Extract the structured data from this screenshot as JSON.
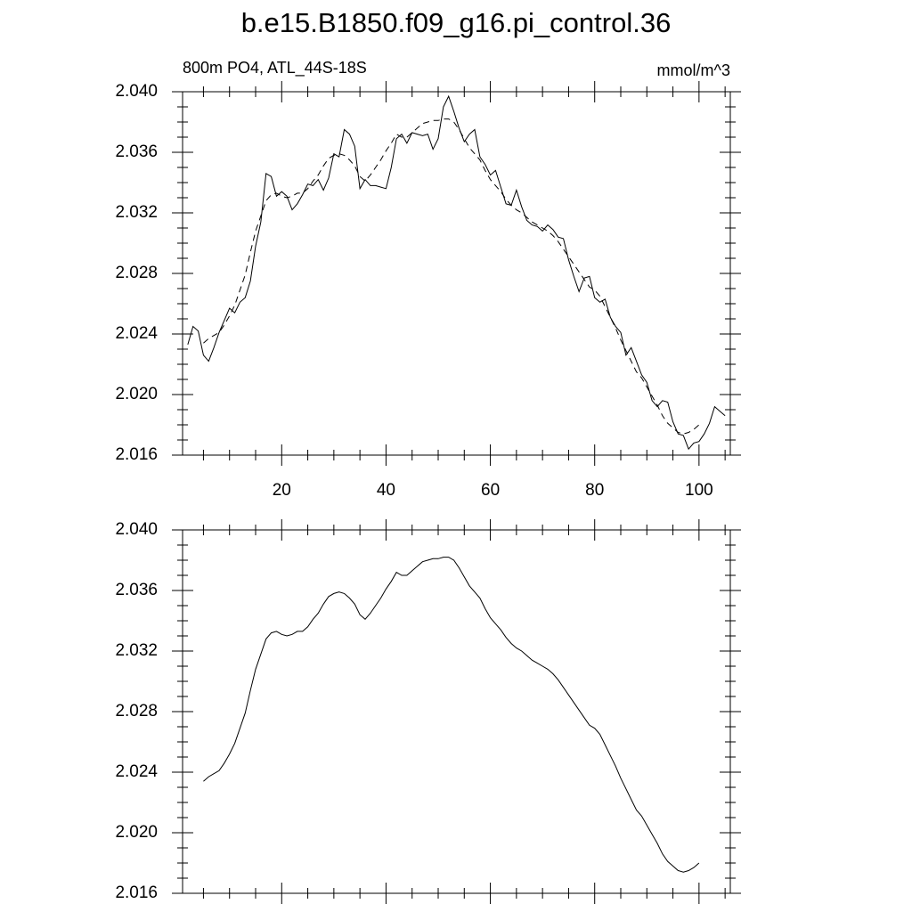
{
  "chart_data": [
    {
      "type": "line",
      "title": "b.e15.B1850.f09_g16.pi_control.36",
      "subtitle": "800m PO4, ATL_44S-18S",
      "units": "mmol/m^3",
      "xlim": [
        1,
        106
      ],
      "ylim": [
        2.016,
        2.04
      ],
      "xticks": [
        20,
        40,
        60,
        80,
        100
      ],
      "xtick_labels": true,
      "yticks": [
        {
          "value": 2.016,
          "label": "2.016"
        },
        {
          "value": 2.02,
          "label": "2.020"
        },
        {
          "value": 2.024,
          "label": "2.024"
        },
        {
          "value": 2.028,
          "label": "2.028"
        },
        {
          "value": 2.032,
          "label": "2.032"
        },
        {
          "value": 2.036,
          "label": "2.036"
        },
        {
          "value": 2.04,
          "label": "2.040"
        }
      ],
      "series": [
        {
          "color": "#000000",
          "dash": false,
          "x": [
            2,
            3,
            4,
            5,
            6,
            7,
            8,
            9,
            10,
            11,
            12,
            13,
            14,
            15,
            16,
            17,
            18,
            19,
            20,
            21,
            22,
            23,
            24,
            25,
            26,
            27,
            28,
            29,
            30,
            31,
            32,
            33,
            34,
            35,
            36,
            37,
            38,
            39,
            40,
            41,
            42,
            43,
            44,
            45,
            46,
            47,
            48,
            49,
            50,
            51,
            52,
            53,
            54,
            55,
            56,
            57,
            58,
            59,
            60,
            61,
            62,
            63,
            64,
            65,
            66,
            67,
            68,
            69,
            70,
            71,
            72,
            73,
            74,
            75,
            76,
            77,
            78,
            79,
            80,
            81,
            82,
            83,
            84,
            85,
            86,
            87,
            88,
            89,
            90,
            91,
            92,
            93,
            94,
            95,
            96,
            97,
            98,
            99,
            100,
            101,
            102,
            103,
            104,
            105
          ],
          "values": [
            2.0233,
            2.0245,
            2.0242,
            2.0226,
            2.0222,
            2.0231,
            2.0241,
            2.0249,
            2.0257,
            2.0254,
            2.0261,
            2.0264,
            2.0275,
            2.0298,
            2.0314,
            2.0346,
            2.0344,
            2.0331,
            2.0334,
            2.0331,
            2.0322,
            2.0326,
            2.0332,
            2.0339,
            2.0338,
            2.0342,
            2.0335,
            2.0343,
            2.0359,
            2.0357,
            2.0375,
            2.0372,
            2.0364,
            2.0336,
            2.0342,
            2.0338,
            2.0338,
            2.0337,
            2.0336,
            2.035,
            2.0369,
            2.0372,
            2.0366,
            2.0373,
            2.0372,
            2.0371,
            2.0372,
            2.0362,
            2.0369,
            2.039,
            2.0397,
            2.0387,
            2.0376,
            2.0367,
            2.0372,
            2.0375,
            2.0357,
            2.0352,
            2.0345,
            2.0348,
            2.0337,
            2.0326,
            2.0325,
            2.0335,
            2.0324,
            2.0315,
            2.0312,
            2.0311,
            2.0308,
            2.0312,
            2.0309,
            2.0304,
            2.0303,
            2.0289,
            2.0278,
            2.0268,
            2.0277,
            2.0278,
            2.0264,
            2.0261,
            2.0263,
            2.0251,
            2.0245,
            2.0241,
            2.0226,
            2.0231,
            2.0222,
            2.0213,
            2.0208,
            2.0196,
            2.0192,
            2.0196,
            2.0195,
            2.0182,
            2.0174,
            2.0173,
            2.0164,
            2.0168,
            2.0169,
            2.0174,
            2.0181,
            2.0192,
            2.0189,
            2.0186
          ]
        },
        {
          "color": "#000000",
          "dash": true,
          "x": [
            5,
            6,
            7,
            8,
            9,
            10,
            11,
            12,
            13,
            14,
            15,
            16,
            17,
            18,
            19,
            20,
            21,
            22,
            23,
            24,
            25,
            26,
            27,
            28,
            29,
            30,
            31,
            32,
            33,
            34,
            35,
            36,
            37,
            38,
            39,
            40,
            41,
            42,
            43,
            44,
            45,
            46,
            47,
            48,
            49,
            50,
            51,
            52,
            53,
            54,
            55,
            56,
            57,
            58,
            59,
            60,
            61,
            62,
            63,
            64,
            65,
            66,
            67,
            68,
            69,
            70,
            71,
            72,
            73,
            74,
            75,
            76,
            77,
            78,
            79,
            80,
            81,
            82,
            83,
            84,
            85,
            86,
            87,
            88,
            89,
            90,
            91,
            92,
            93,
            94,
            95,
            96,
            97,
            98,
            99,
            100
          ],
          "values": [
            2.0234,
            2.0237,
            2.0239,
            2.0241,
            2.0246,
            2.0252,
            2.0259,
            2.0269,
            2.0279,
            2.0294,
            2.0308,
            2.0318,
            2.0328,
            2.0332,
            2.0333,
            2.0331,
            2.033,
            2.0331,
            2.0333,
            2.0333,
            2.0336,
            2.0341,
            2.0345,
            2.0351,
            2.0356,
            2.0358,
            2.0359,
            2.0358,
            2.0355,
            2.0351,
            2.0344,
            2.0341,
            2.0345,
            2.035,
            2.0355,
            2.0361,
            2.0366,
            2.0372,
            2.037,
            2.037,
            2.0373,
            2.0376,
            2.0379,
            2.038,
            2.0381,
            2.0381,
            2.0382,
            2.0382,
            2.038,
            2.0375,
            2.0369,
            2.0363,
            2.0359,
            2.0355,
            2.0348,
            2.0342,
            2.0338,
            2.0334,
            2.0329,
            2.0325,
            2.0322,
            2.032,
            2.0317,
            2.0314,
            2.0312,
            2.031,
            2.0308,
            2.0305,
            2.0301,
            2.0296,
            2.0291,
            2.0286,
            2.0281,
            2.0276,
            2.0271,
            2.0269,
            2.0265,
            2.0258,
            2.0251,
            2.0244,
            2.0236,
            2.0229,
            2.0222,
            2.0215,
            2.0211,
            2.0205,
            2.0199,
            2.0193,
            2.0186,
            2.0181,
            2.0178,
            2.0175,
            2.0174,
            2.0175,
            2.0177,
            2.018
          ]
        }
      ]
    },
    {
      "type": "line",
      "xlim": [
        1,
        106
      ],
      "ylim": [
        2.016,
        2.04
      ],
      "xticks": [
        20,
        40,
        60,
        80,
        100
      ],
      "xtick_labels": false,
      "yticks": [
        {
          "value": 2.016,
          "label": "2.016"
        },
        {
          "value": 2.02,
          "label": "2.020"
        },
        {
          "value": 2.024,
          "label": "2.024"
        },
        {
          "value": 2.028,
          "label": "2.028"
        },
        {
          "value": 2.032,
          "label": "2.032"
        },
        {
          "value": 2.036,
          "label": "2.036"
        },
        {
          "value": 2.04,
          "label": "2.040"
        }
      ],
      "series": [
        {
          "color": "#000000",
          "dash": false,
          "x": [
            5,
            6,
            7,
            8,
            9,
            10,
            11,
            12,
            13,
            14,
            15,
            16,
            17,
            18,
            19,
            20,
            21,
            22,
            23,
            24,
            25,
            26,
            27,
            28,
            29,
            30,
            31,
            32,
            33,
            34,
            35,
            36,
            37,
            38,
            39,
            40,
            41,
            42,
            43,
            44,
            45,
            46,
            47,
            48,
            49,
            50,
            51,
            52,
            53,
            54,
            55,
            56,
            57,
            58,
            59,
            60,
            61,
            62,
            63,
            64,
            65,
            66,
            67,
            68,
            69,
            70,
            71,
            72,
            73,
            74,
            75,
            76,
            77,
            78,
            79,
            80,
            81,
            82,
            83,
            84,
            85,
            86,
            87,
            88,
            89,
            90,
            91,
            92,
            93,
            94,
            95,
            96,
            97,
            98,
            99,
            100
          ],
          "values": [
            2.0234,
            2.0237,
            2.0239,
            2.0241,
            2.0246,
            2.0252,
            2.0259,
            2.0269,
            2.0279,
            2.0294,
            2.0308,
            2.0318,
            2.0328,
            2.0332,
            2.0333,
            2.0331,
            2.033,
            2.0331,
            2.0333,
            2.0333,
            2.0336,
            2.0341,
            2.0345,
            2.0351,
            2.0356,
            2.0358,
            2.0359,
            2.0358,
            2.0355,
            2.0351,
            2.0344,
            2.0341,
            2.0345,
            2.035,
            2.0355,
            2.0361,
            2.0366,
            2.0372,
            2.037,
            2.037,
            2.0373,
            2.0376,
            2.0379,
            2.038,
            2.0381,
            2.0381,
            2.0382,
            2.0382,
            2.038,
            2.0375,
            2.0369,
            2.0363,
            2.0359,
            2.0355,
            2.0348,
            2.0342,
            2.0338,
            2.0334,
            2.0329,
            2.0325,
            2.0322,
            2.032,
            2.0317,
            2.0314,
            2.0312,
            2.031,
            2.0308,
            2.0305,
            2.0301,
            2.0296,
            2.0291,
            2.0286,
            2.0281,
            2.0276,
            2.0271,
            2.0269,
            2.0265,
            2.0258,
            2.0251,
            2.0244,
            2.0236,
            2.0229,
            2.0222,
            2.0215,
            2.0211,
            2.0205,
            2.0199,
            2.0193,
            2.0186,
            2.0181,
            2.0178,
            2.0175,
            2.0174,
            2.0175,
            2.0177,
            2.018
          ]
        }
      ]
    }
  ]
}
